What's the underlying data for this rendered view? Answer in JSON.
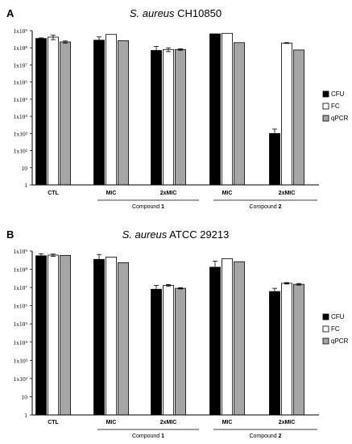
{
  "colors": {
    "CFU": "#000000",
    "FC": "#ffffff",
    "qPCR": "#a6a6a6",
    "axis": "#000000"
  },
  "chart_data": [
    {
      "type": "bar",
      "panel": "A",
      "title_species": "S. aureus",
      "title_strain": "CH10850",
      "y_scale": "log",
      "ylim": [
        1,
        1000000000
      ],
      "y_ticks": [
        1,
        10,
        100,
        1000,
        10000,
        100000,
        1000000,
        10000000,
        100000000,
        1000000000
      ],
      "y_tick_labels": [
        "1",
        "10",
        "1x10²",
        "1x10³",
        "1x10⁴",
        "1x10⁵",
        "1x10⁶",
        "1x10⁷",
        "1x10⁸",
        "1x10⁹"
      ],
      "categories": [
        "CTL",
        "MIC",
        "2xMIC",
        "MIC",
        "2xMIC"
      ],
      "groups": [
        {
          "label": "Compound ",
          "number": "1",
          "categories": [
            1,
            2
          ]
        },
        {
          "label": "Compound ",
          "number": "2",
          "categories": [
            3,
            4
          ]
        }
      ],
      "legend_position": "right",
      "series": [
        {
          "name": "CFU",
          "values": [
            350000000,
            280000000,
            70000000,
            650000000,
            1000
          ],
          "errors": [
            30000000,
            150000000,
            50000000,
            0,
            800
          ]
        },
        {
          "name": "FC",
          "values": [
            420000000,
            600000000,
            80000000,
            700000000,
            190000000
          ],
          "errors": [
            120000000,
            0,
            20000000,
            0,
            10000000
          ]
        },
        {
          "name": "qPCR",
          "values": [
            220000000,
            260000000,
            80000000,
            200000000,
            75000000
          ],
          "errors": [
            30000000,
            0,
            8000000,
            0,
            0
          ]
        }
      ]
    },
    {
      "type": "bar",
      "panel": "B",
      "title_species": "S. aureus",
      "title_strain": "ATCC 29213",
      "y_scale": "log",
      "ylim": [
        1,
        1000000000
      ],
      "y_ticks": [
        1,
        10,
        100,
        1000,
        10000,
        100000,
        1000000,
        10000000,
        100000000,
        1000000000
      ],
      "y_tick_labels": [
        "1",
        "10",
        "1x10²",
        "1x10³",
        "1x10⁴",
        "1x10⁵",
        "1x10⁶",
        "1x10⁷",
        "1x10⁸",
        "1x10⁹"
      ],
      "categories": [
        "CTL",
        "MIC",
        "2xMIC",
        "MIC",
        "2xMIC"
      ],
      "groups": [
        {
          "label": "Compound ",
          "number": "1",
          "categories": [
            1,
            2
          ]
        },
        {
          "label": "Compound ",
          "number": "2",
          "categories": [
            3,
            4
          ]
        }
      ],
      "legend_position": "right",
      "series": [
        {
          "name": "CFU",
          "values": [
            550000000,
            350000000,
            8000000,
            130000000,
            6000000
          ],
          "errors": [
            150000000,
            300000000,
            5000000,
            150000000,
            3000000
          ]
        },
        {
          "name": "FC",
          "values": [
            600000000,
            470000000,
            13000000,
            380000000,
            17000000
          ],
          "errors": [
            80000000,
            0,
            1500000,
            0,
            1500000
          ]
        },
        {
          "name": "qPCR",
          "values": [
            580000000,
            230000000,
            9000000,
            260000000,
            15000000
          ],
          "errors": [
            0,
            0,
            700000,
            0,
            1500000
          ]
        }
      ]
    }
  ]
}
